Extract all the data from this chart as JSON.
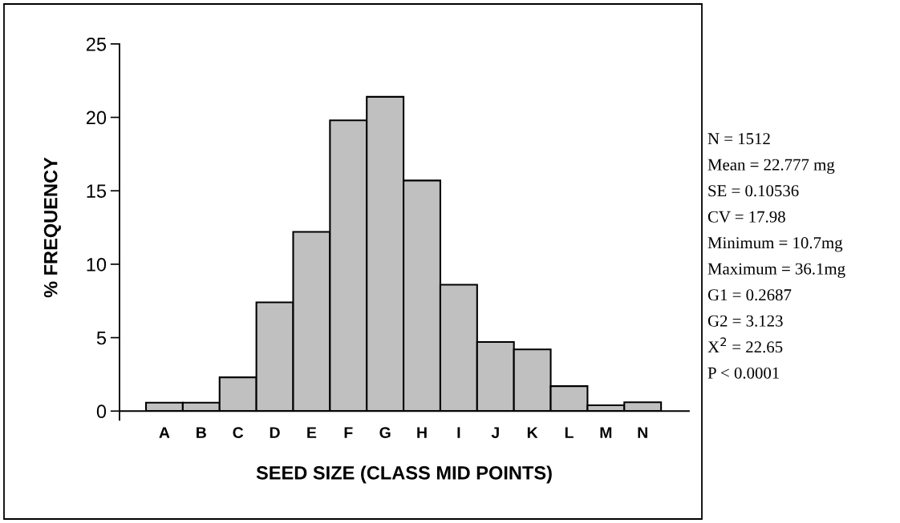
{
  "chart_data": {
    "type": "bar",
    "xlabel": "SEED SIZE (CLASS MID POINTS)",
    "ylabel": "% FREQUENCY",
    "categories": [
      "A",
      "B",
      "C",
      "D",
      "E",
      "F",
      "G",
      "H",
      "I",
      "J",
      "K",
      "L",
      "M",
      "N"
    ],
    "values": [
      0.57,
      0.57,
      2.3,
      7.4,
      12.2,
      19.8,
      21.4,
      15.7,
      8.6,
      4.7,
      4.2,
      1.7,
      0.4,
      0.6
    ],
    "color": "#c0c0c0",
    "ylim": [
      0,
      25
    ],
    "yticks": [
      0,
      5,
      10,
      15,
      20,
      25
    ],
    "grid": false,
    "legend": false,
    "annotations": [
      "N = 1512",
      "Mean = 22.777 mg",
      "SE = 0.10536",
      "CV = 17.98",
      "Minimum = 10.7mg",
      "Maximum = 36.1mg",
      "G1 = 0.2687",
      "G2 = 3.123",
      "X$^{2}$ = 22.65",
      "P < 0.0001"
    ]
  }
}
